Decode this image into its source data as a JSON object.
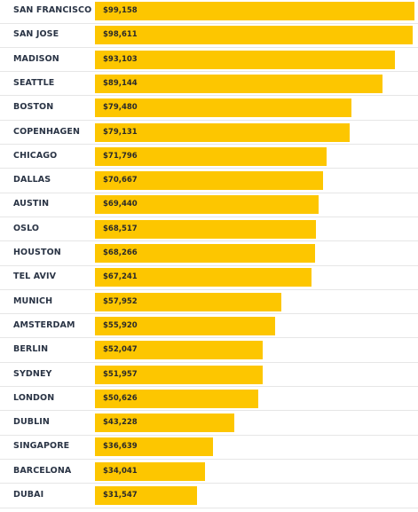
{
  "chart_data": {
    "type": "bar",
    "orientation": "horizontal",
    "title": "",
    "xlabel": "",
    "ylabel": "",
    "bar_color": "#fdc600",
    "label_color": "#2a3445",
    "xlim": [
      0,
      99158
    ],
    "grid": false,
    "categories": [
      "SAN FRANCISCO",
      "SAN JOSE",
      "MADISON",
      "SEATTLE",
      "BOSTON",
      "COPENHAGEN",
      "CHICAGO",
      "DALLAS",
      "AUSTIN",
      "OSLO",
      "HOUSTON",
      "TEL AVIV",
      "MUNICH",
      "AMSTERDAM",
      "BERLIN",
      "SYDNEY",
      "LONDON",
      "DUBLIN",
      "SINGAPORE",
      "BARCELONA",
      "DUBAI"
    ],
    "values": [
      99158,
      98611,
      93103,
      89144,
      79480,
      79131,
      71796,
      70667,
      69440,
      68517,
      68266,
      67241,
      57952,
      55920,
      52047,
      51957,
      50626,
      43228,
      36639,
      34041,
      31547
    ],
    "value_labels": [
      "$99,158",
      "$98,611",
      "$93,103",
      "$89,144",
      "$79,480",
      "$79,131",
      "$71,796",
      "$70,667",
      "$69,440",
      "$68,517",
      "$68,266",
      "$67,241",
      "$57,952",
      "$55,920",
      "$52,047",
      "$51,957",
      "$50,626",
      "$43,228",
      "$36,639",
      "$34,041",
      "$31,547"
    ]
  }
}
